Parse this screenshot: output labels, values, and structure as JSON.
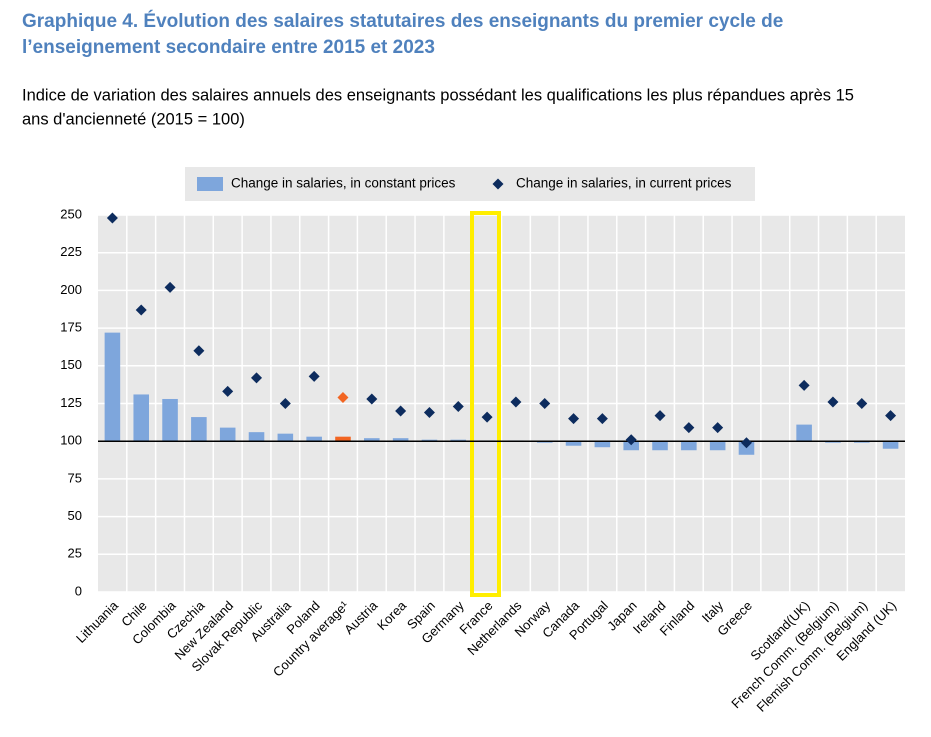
{
  "chart_data": {
    "type": "bar_dot",
    "title_lines": [
      "Graphique  4. Évolution des salaires statutaires des enseignants du premier cycle de",
      "l’enseignement secondaire entre 2015 et 2023"
    ],
    "subtitle_lines": [
      "Indice de variation des salaires annuels des enseignants possédant les qualifications les plus répandues après 15",
      "ans d'ancienneté (2015 = 100)"
    ],
    "categories": [
      "Lithuania",
      "Chile",
      "Colombia",
      "Czechia",
      "New Zealand",
      "Slovak Republic",
      "Australia",
      "Poland",
      "Country average¹",
      "Austria",
      "Korea",
      "Spain",
      "Germany",
      "France",
      "Netherlands",
      "Norway",
      "Canada",
      "Portugal",
      "Japan",
      "Ireland",
      "Finland",
      "Italy",
      "Greece",
      null,
      "Scotland(UK)",
      "French Comm. (Belgium)",
      "Flemish Comm. (Belgium)",
      "England (UK)"
    ],
    "series": [
      {
        "name": "Change in salaries, in constant prices",
        "mark": "bar",
        "color": "#7ea6dc",
        "values": [
          172,
          131,
          128,
          116,
          109,
          106,
          105,
          103,
          103,
          102,
          102,
          101,
          101,
          100.5,
          100.5,
          99,
          97,
          96,
          94,
          94,
          94,
          94,
          91,
          null,
          111,
          99,
          99,
          95
        ],
        "colors": [
          "#7ea6dc",
          "#7ea6dc",
          "#7ea6dc",
          "#7ea6dc",
          "#7ea6dc",
          "#7ea6dc",
          "#7ea6dc",
          "#7ea6dc",
          "#f26522",
          "#7ea6dc",
          "#7ea6dc",
          "#7ea6dc",
          "#7ea6dc",
          "#7ea6dc",
          "#7ea6dc",
          "#7ea6dc",
          "#7ea6dc",
          "#7ea6dc",
          "#7ea6dc",
          "#7ea6dc",
          "#7ea6dc",
          "#7ea6dc",
          "#7ea6dc",
          "#7ea6dc",
          "#7ea6dc",
          "#7ea6dc",
          "#7ea6dc",
          "#7ea6dc"
        ]
      },
      {
        "name": "Change in salaries, in current prices",
        "mark": "diamond",
        "color": "#0d2c5e",
        "values": [
          248,
          187,
          202,
          160,
          133,
          142,
          125,
          143,
          129,
          128,
          120,
          119,
          123,
          116,
          126,
          125,
          115,
          115,
          101,
          117,
          109,
          109,
          99,
          null,
          137,
          126,
          125,
          117
        ],
        "colors": [
          "#0d2c5e",
          "#0d2c5e",
          "#0d2c5e",
          "#0d2c5e",
          "#0d2c5e",
          "#0d2c5e",
          "#0d2c5e",
          "#0d2c5e",
          "#f26522",
          "#0d2c5e",
          "#0d2c5e",
          "#0d2c5e",
          "#0d2c5e",
          "#0d2c5e",
          "#0d2c5e",
          "#0d2c5e",
          "#0d2c5e",
          "#0d2c5e",
          "#0d2c5e",
          "#0d2c5e",
          "#0d2c5e",
          "#0d2c5e",
          "#0d2c5e",
          "#0d2c5e",
          "#0d2c5e",
          "#0d2c5e",
          "#0d2c5e",
          "#0d2c5e"
        ]
      }
    ],
    "baseline": 100,
    "ylim": [
      0,
      250
    ],
    "yticks": [
      0,
      25,
      50,
      75,
      100,
      125,
      150,
      175,
      200,
      225,
      250
    ],
    "grid": true
  }
}
